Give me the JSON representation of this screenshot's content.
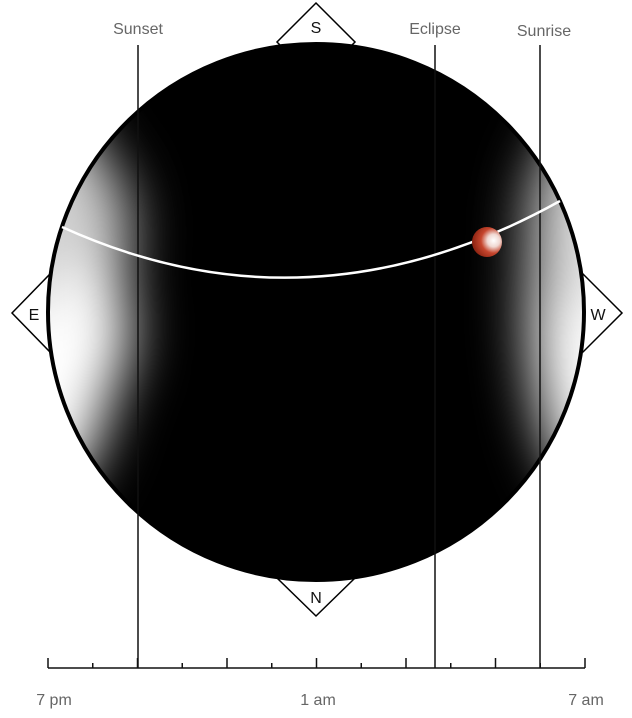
{
  "events": {
    "sunset": "Sunset",
    "eclipse": "Eclipse",
    "sunrise": "Sunrise"
  },
  "compass": {
    "south": "S",
    "north": "N",
    "east": "E",
    "west": "W"
  },
  "timeline": {
    "start": "7 pm",
    "middle": "1 am",
    "end": "7 am",
    "tick_count": 13
  },
  "colors": {
    "sky": "#000000",
    "moon": "#b5311d",
    "moon_highlight": "#ffffff",
    "event_line": "#111111",
    "label": "#666666"
  }
}
